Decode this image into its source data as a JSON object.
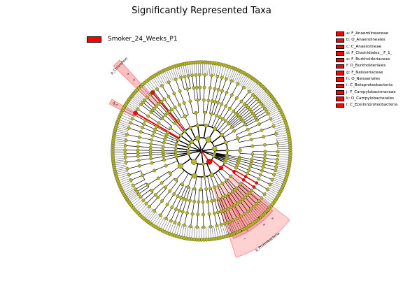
{
  "chart_data": {
    "type": "cladogram",
    "title": "Significantly Represented Taxa",
    "group_legend": [
      {
        "name": "Smoker_24_Weeks_P1",
        "color": "#ff0000"
      }
    ],
    "key_legend": [
      {
        "label": "a: F_Anaerolineaceae"
      },
      {
        "label": "b: O_Anaerolineales"
      },
      {
        "label": "c: C_Anaerolineae"
      },
      {
        "label": "d: F_Clostridiales__F_1_"
      },
      {
        "label": "e: F_Burkholderiaceae"
      },
      {
        "label": "f: O_Burkholderiales"
      },
      {
        "label": "g: F_Neisseriaceae"
      },
      {
        "label": "h: O_Neisseriales"
      },
      {
        "label": "i: C_Betaproteobacteria"
      },
      {
        "label": "j: F_Campylobacteraceae"
      },
      {
        "label": "k: O_Campylobacterales"
      },
      {
        "label": "l: C_Epsilonproteobacteria"
      }
    ],
    "highlighted_clades": [
      {
        "label": "p_Chloroflexi",
        "color": "#ff0000"
      },
      {
        "label": "d",
        "color": "#ff0000"
      },
      {
        "label": "p_Proteobacteria",
        "color": "#ff0000"
      }
    ],
    "node_colors": {
      "neutral": "#b5b81d",
      "enriched": "#ff0000"
    }
  }
}
